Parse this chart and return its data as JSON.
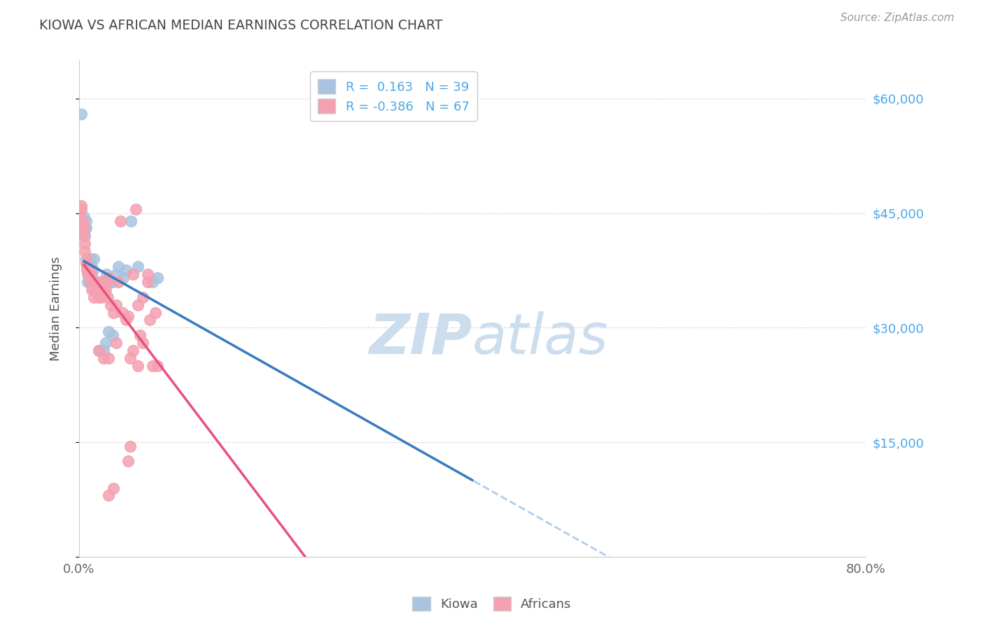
{
  "title": "KIOWA VS AFRICAN MEDIAN EARNINGS CORRELATION CHART",
  "source": "Source: ZipAtlas.com",
  "ylabel": "Median Earnings",
  "legend_kiowa": "R =  0.163   N = 39",
  "legend_africans": "R = -0.386   N = 67",
  "legend_label1": "Kiowa",
  "legend_label2": "Africans",
  "bg_color": "#ffffff",
  "grid_color": "#dddddd",
  "kiowa_color": "#a8c4e0",
  "africans_color": "#f4a0b0",
  "kiowa_line_color": "#3a7bbf",
  "africans_line_color": "#e85080",
  "dash_line_color": "#b0ccee",
  "right_axis_color": "#4da6e8",
  "watermark_color": "#ccdded",
  "kiowa_scatter": [
    [
      0.002,
      58000
    ],
    [
      0.005,
      43000
    ],
    [
      0.005,
      44500
    ],
    [
      0.006,
      42000
    ],
    [
      0.007,
      43000
    ],
    [
      0.007,
      44000
    ],
    [
      0.008,
      38000
    ],
    [
      0.009,
      36000
    ],
    [
      0.009,
      37000
    ],
    [
      0.01,
      38000
    ],
    [
      0.01,
      36500
    ],
    [
      0.011,
      36000
    ],
    [
      0.011,
      38500
    ],
    [
      0.012,
      39000
    ],
    [
      0.013,
      38000
    ],
    [
      0.013,
      37000
    ],
    [
      0.014,
      37500
    ],
    [
      0.015,
      35000
    ],
    [
      0.015,
      39000
    ],
    [
      0.016,
      36000
    ],
    [
      0.018,
      35500
    ],
    [
      0.018,
      36000
    ],
    [
      0.02,
      27000
    ],
    [
      0.022,
      36000
    ],
    [
      0.025,
      27000
    ],
    [
      0.027,
      28000
    ],
    [
      0.028,
      37000
    ],
    [
      0.03,
      29500
    ],
    [
      0.032,
      36000
    ],
    [
      0.034,
      29000
    ],
    [
      0.034,
      36000
    ],
    [
      0.038,
      37000
    ],
    [
      0.04,
      38000
    ],
    [
      0.045,
      36500
    ],
    [
      0.048,
      37500
    ],
    [
      0.053,
      44000
    ],
    [
      0.06,
      38000
    ],
    [
      0.075,
      36000
    ],
    [
      0.08,
      36500
    ]
  ],
  "africans_scatter": [
    [
      0.001,
      44500
    ],
    [
      0.002,
      46000
    ],
    [
      0.002,
      45500
    ],
    [
      0.003,
      43500
    ],
    [
      0.003,
      44000
    ],
    [
      0.004,
      44000
    ],
    [
      0.004,
      43000
    ],
    [
      0.005,
      42000
    ],
    [
      0.005,
      43000
    ],
    [
      0.006,
      40000
    ],
    [
      0.006,
      41000
    ],
    [
      0.007,
      38500
    ],
    [
      0.007,
      39000
    ],
    [
      0.008,
      37500
    ],
    [
      0.009,
      38000
    ],
    [
      0.01,
      37000
    ],
    [
      0.01,
      37500
    ],
    [
      0.011,
      36500
    ],
    [
      0.012,
      36000
    ],
    [
      0.012,
      37000
    ],
    [
      0.013,
      35000
    ],
    [
      0.014,
      36000
    ],
    [
      0.015,
      34000
    ],
    [
      0.016,
      35500
    ],
    [
      0.017,
      35000
    ],
    [
      0.018,
      36000
    ],
    [
      0.02,
      34000
    ],
    [
      0.022,
      34500
    ],
    [
      0.023,
      36000
    ],
    [
      0.023,
      34000
    ],
    [
      0.025,
      35500
    ],
    [
      0.026,
      34500
    ],
    [
      0.027,
      35000
    ],
    [
      0.028,
      36000
    ],
    [
      0.029,
      34000
    ],
    [
      0.03,
      36500
    ],
    [
      0.032,
      33000
    ],
    [
      0.035,
      32000
    ],
    [
      0.038,
      33000
    ],
    [
      0.04,
      36000
    ],
    [
      0.042,
      44000
    ],
    [
      0.044,
      32000
    ],
    [
      0.048,
      31000
    ],
    [
      0.05,
      31500
    ],
    [
      0.052,
      26000
    ],
    [
      0.055,
      27000
    ],
    [
      0.058,
      45500
    ],
    [
      0.06,
      33000
    ],
    [
      0.062,
      29000
    ],
    [
      0.065,
      28000
    ],
    [
      0.07,
      36000
    ],
    [
      0.072,
      31000
    ],
    [
      0.03,
      8000
    ],
    [
      0.035,
      9000
    ],
    [
      0.05,
      12500
    ],
    [
      0.052,
      14500
    ],
    [
      0.02,
      27000
    ],
    [
      0.03,
      26000
    ],
    [
      0.038,
      28000
    ],
    [
      0.025,
      26000
    ],
    [
      0.06,
      25000
    ],
    [
      0.065,
      34000
    ],
    [
      0.075,
      25000
    ],
    [
      0.055,
      37000
    ],
    [
      0.08,
      25000
    ],
    [
      0.078,
      32000
    ],
    [
      0.07,
      37000
    ]
  ],
  "xlim": [
    0.0,
    0.8
  ],
  "ylim": [
    0,
    65000
  ]
}
